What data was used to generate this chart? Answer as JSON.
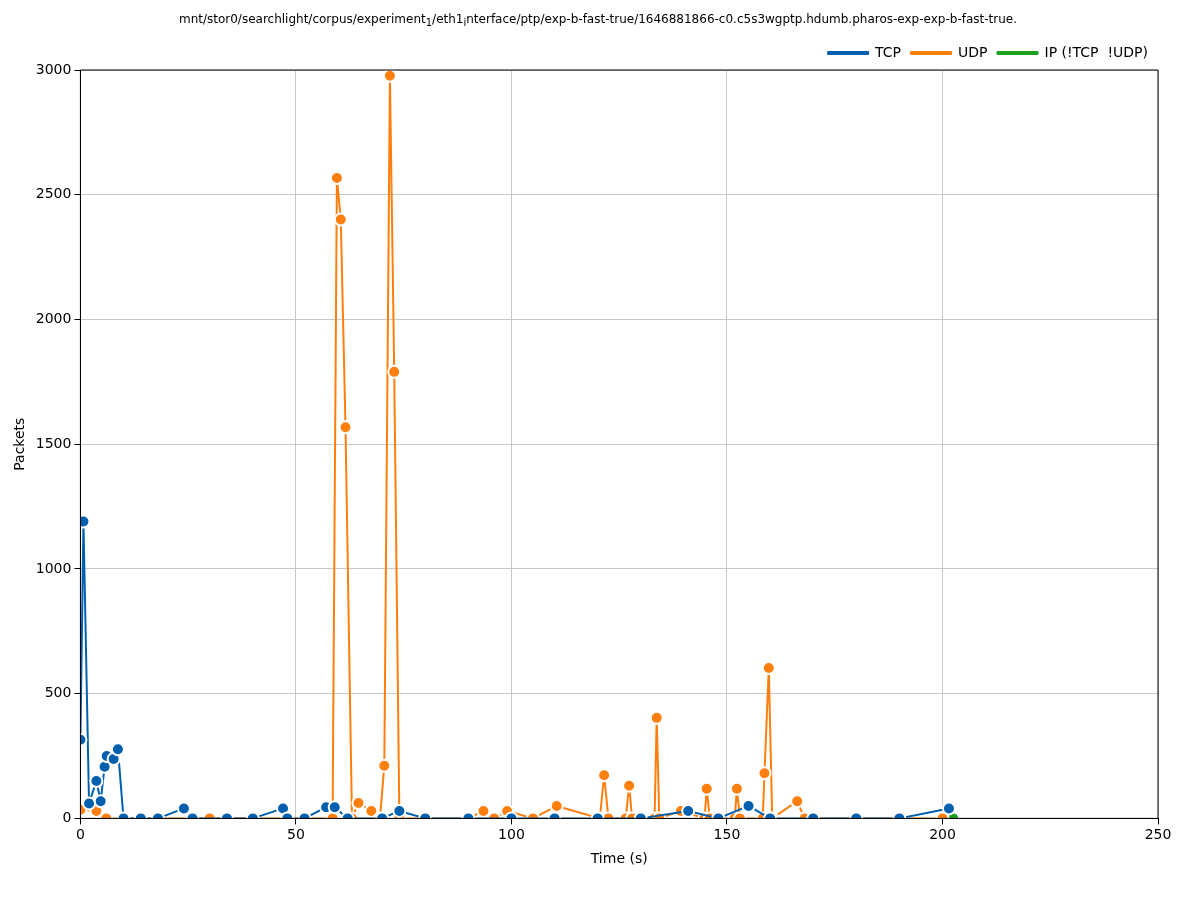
{
  "chart_data": {
    "type": "line",
    "title": "mnt/stor0/searchlight/corpus/experiment$_{1}$/eth1$_{i}$nterface/ptp/exp-b-fast-true/1646881866-c0.c5s3wgptp.hdumb.pharos-exp-exp-b-fast-true.",
    "xlabel": "Time (s)",
    "ylabel": "Packets",
    "series": [
      {
        "name": "TCP",
        "color": "#0060ad",
        "x": [
          0,
          0.7,
          2,
          3.7,
          4.7,
          5.6,
          6.1,
          7.7,
          8.7,
          10,
          14,
          18,
          24,
          26,
          34,
          40,
          47,
          48,
          52,
          57,
          59,
          62,
          70,
          74,
          80,
          90,
          100,
          110,
          120,
          130,
          141,
          148,
          155,
          160,
          170,
          180,
          190,
          201.5
        ],
        "values": [
          315,
          1190,
          60,
          150,
          69,
          207,
          250,
          238,
          277,
          0,
          0,
          0,
          40,
          0,
          0,
          0,
          40,
          0,
          0,
          45,
          45,
          0,
          0,
          30,
          0,
          0,
          0,
          0,
          0,
          0,
          30,
          0,
          50,
          0,
          0,
          0,
          0,
          40
        ]
      },
      {
        "name": "UDP",
        "color": "#ff7f0e",
        "x": [
          0,
          3.7,
          6,
          30,
          58.5,
          59.5,
          60.4,
          61.5,
          63,
          64.5,
          67.5,
          69.5,
          70.5,
          71.8,
          72.8,
          74,
          90,
          93.5,
          96,
          99,
          105,
          110.5,
          120.5,
          121.5,
          122.5,
          126.5,
          127.3,
          128,
          133.2,
          133.7,
          134.3,
          139.3,
          144.8,
          145.3,
          146,
          151.8,
          152.3,
          153,
          158.3,
          158.7,
          159.7,
          160.5,
          166.3,
          168,
          200
        ],
        "values": [
          35,
          30,
          0,
          0,
          0,
          2567,
          2401,
          1568,
          0,
          62,
          30,
          0,
          211,
          2977,
          1790,
          0,
          0,
          30,
          0,
          30,
          0,
          50,
          0,
          173,
          0,
          0,
          131,
          0,
          0,
          403,
          0,
          30,
          0,
          119,
          0,
          0,
          119,
          0,
          0,
          181,
          603,
          0,
          69,
          0,
          0
        ]
      },
      {
        "name": "IP (!TCP  !UDP)",
        "color": "#20a020",
        "x": [
          202.5
        ],
        "values": [
          0
        ]
      }
    ],
    "xlim": [
      0,
      250
    ],
    "xticks": [
      0,
      50,
      100,
      150,
      200,
      250
    ],
    "ylim": [
      0,
      3000
    ],
    "yticks": [
      0,
      500,
      1000,
      1500,
      2000,
      2500,
      3000
    ],
    "grid": true,
    "legend": "top right",
    "marker": "circle",
    "line_style": "solid"
  }
}
